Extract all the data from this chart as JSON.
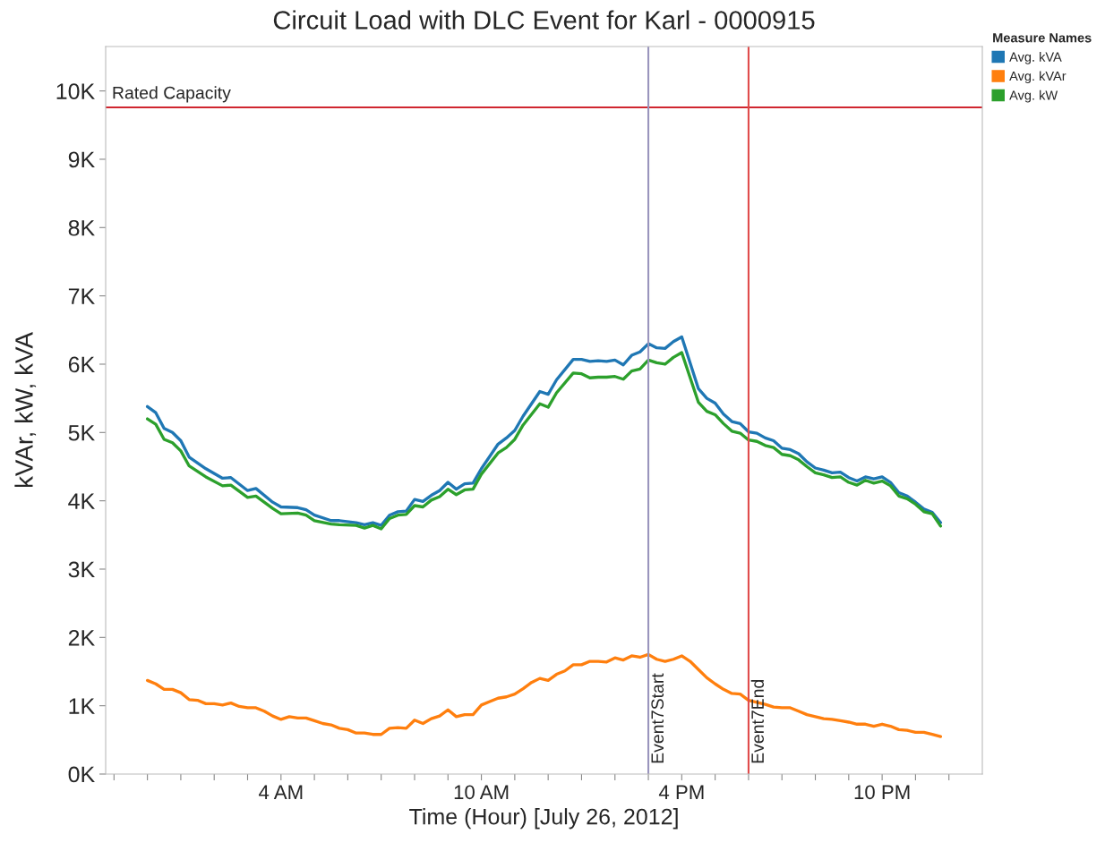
{
  "chart_data": {
    "type": "line",
    "title": "Circuit Load with DLC Event for Karl - 0000915",
    "xlabel": "Time (Hour) [July 26, 2012]",
    "ylabel": "kVAr, kW, kVA",
    "legend_title": "Measure Names",
    "legend": "top right",
    "grid": false,
    "xlim": [
      "2012-07-25T22:45",
      "2012-07-27T01:00"
    ],
    "xticks": [
      {
        "value": "2012-07-25T23:00",
        "label": null
      },
      {
        "value": "2012-07-26T00:00",
        "label": null
      },
      {
        "value": "2012-07-26T01:00",
        "label": null
      },
      {
        "value": "2012-07-26T02:00",
        "label": null
      },
      {
        "value": "2012-07-26T03:00",
        "label": null
      },
      {
        "value": "2012-07-26T04:00",
        "label": "4 AM"
      },
      {
        "value": "2012-07-26T05:00",
        "label": null
      },
      {
        "value": "2012-07-26T06:00",
        "label": null
      },
      {
        "value": "2012-07-26T07:00",
        "label": null
      },
      {
        "value": "2012-07-26T08:00",
        "label": null
      },
      {
        "value": "2012-07-26T09:00",
        "label": null
      },
      {
        "value": "2012-07-26T10:00",
        "label": "10 AM"
      },
      {
        "value": "2012-07-26T11:00",
        "label": null
      },
      {
        "value": "2012-07-26T12:00",
        "label": null
      },
      {
        "value": "2012-07-26T13:00",
        "label": null
      },
      {
        "value": "2012-07-26T14:00",
        "label": null
      },
      {
        "value": "2012-07-26T15:00",
        "label": null
      },
      {
        "value": "2012-07-26T16:00",
        "label": "4 PM"
      },
      {
        "value": "2012-07-26T17:00",
        "label": null
      },
      {
        "value": "2012-07-26T18:00",
        "label": null
      },
      {
        "value": "2012-07-26T19:00",
        "label": null
      },
      {
        "value": "2012-07-26T20:00",
        "label": null
      },
      {
        "value": "2012-07-26T21:00",
        "label": null
      },
      {
        "value": "2012-07-26T22:00",
        "label": "10 PM"
      },
      {
        "value": "2012-07-26T23:00",
        "label": null
      },
      {
        "value": "2012-07-27T00:00",
        "label": null
      }
    ],
    "ylim": [
      0,
      10650
    ],
    "yticks": [
      {
        "value": 0,
        "label": "0K"
      },
      {
        "value": 1000,
        "label": "1K"
      },
      {
        "value": 2000,
        "label": "2K"
      },
      {
        "value": 3000,
        "label": "3K"
      },
      {
        "value": 4000,
        "label": "4K"
      },
      {
        "value": 5000,
        "label": "5K"
      },
      {
        "value": 6000,
        "label": "6K"
      },
      {
        "value": 7000,
        "label": "7K"
      },
      {
        "value": 8000,
        "label": "8K"
      },
      {
        "value": 9000,
        "label": "9K"
      },
      {
        "value": 10000,
        "label": "10K"
      }
    ],
    "ref_lines": [
      {
        "axis": "y",
        "value": 9760,
        "label": "Rated Capacity",
        "color": "#d0262f"
      },
      {
        "axis": "x",
        "value": "2012-07-26T15:00",
        "label": "Event7Start",
        "color": "#9a95bd"
      },
      {
        "axis": "x",
        "value": "2012-07-26T18:00",
        "label": "Event7End",
        "color": "#e04a4a"
      }
    ],
    "series": [
      {
        "name": "Avg. kVA",
        "color": "#1f77b4",
        "x": [
          "2012-07-26T00:00",
          "2012-07-26T00:15",
          "2012-07-26T00:30",
          "2012-07-26T00:45",
          "2012-07-26T01:00",
          "2012-07-26T01:15",
          "2012-07-26T01:45",
          "2012-07-26T02:15",
          "2012-07-26T02:30",
          "2012-07-26T03:00",
          "2012-07-26T03:15",
          "2012-07-26T03:45",
          "2012-07-26T04:00",
          "2012-07-26T04:30",
          "2012-07-26T04:45",
          "2012-07-26T05:00",
          "2012-07-26T05:30",
          "2012-07-26T05:45",
          "2012-07-26T06:15",
          "2012-07-26T06:30",
          "2012-07-26T06:45",
          "2012-07-26T07:00",
          "2012-07-26T07:15",
          "2012-07-26T07:30",
          "2012-07-26T07:45",
          "2012-07-26T08:00",
          "2012-07-26T08:15",
          "2012-07-26T08:30",
          "2012-07-26T08:45",
          "2012-07-26T09:00",
          "2012-07-26T09:15",
          "2012-07-26T09:30",
          "2012-07-26T09:45",
          "2012-07-26T10:00",
          "2012-07-26T10:30",
          "2012-07-26T10:45",
          "2012-07-26T11:00",
          "2012-07-26T11:15",
          "2012-07-26T11:45",
          "2012-07-26T12:00",
          "2012-07-26T12:15",
          "2012-07-26T12:45",
          "2012-07-26T13:00",
          "2012-07-26T13:15",
          "2012-07-26T13:30",
          "2012-07-26T13:45",
          "2012-07-26T14:00",
          "2012-07-26T14:15",
          "2012-07-26T14:30",
          "2012-07-26T14:45",
          "2012-07-26T15:00",
          "2012-07-26T15:15",
          "2012-07-26T15:30",
          "2012-07-26T15:45",
          "2012-07-26T16:00",
          "2012-07-26T16:30",
          "2012-07-26T16:45",
          "2012-07-26T17:00",
          "2012-07-26T17:15",
          "2012-07-26T17:30",
          "2012-07-26T17:45",
          "2012-07-26T18:00",
          "2012-07-26T18:15",
          "2012-07-26T18:30",
          "2012-07-26T18:45",
          "2012-07-26T19:00",
          "2012-07-26T19:15",
          "2012-07-26T19:30",
          "2012-07-26T19:45",
          "2012-07-26T20:00",
          "2012-07-26T20:15",
          "2012-07-26T20:30",
          "2012-07-26T20:45",
          "2012-07-26T21:00",
          "2012-07-26T21:15",
          "2012-07-26T21:30",
          "2012-07-26T21:45",
          "2012-07-26T22:00",
          "2012-07-26T22:15",
          "2012-07-26T22:30",
          "2012-07-26T22:45",
          "2012-07-26T23:00",
          "2012-07-26T23:15",
          "2012-07-26T23:30",
          "2012-07-26T23:45"
        ],
        "values": [
          5380,
          5290,
          5060,
          5000,
          4880,
          4640,
          4470,
          4330,
          4340,
          4150,
          4180,
          3980,
          3910,
          3900,
          3870,
          3790,
          3710,
          3710,
          3680,
          3650,
          3680,
          3640,
          3790,
          3840,
          3850,
          4020,
          3990,
          4080,
          4150,
          4270,
          4170,
          4250,
          4260,
          4470,
          4830,
          4920,
          5030,
          5240,
          5600,
          5560,
          5770,
          6070,
          6070,
          6040,
          6050,
          6040,
          6060,
          5990,
          6130,
          6180,
          6300,
          6240,
          6230,
          6330,
          6400,
          5640,
          5500,
          5430,
          5270,
          5160,
          5130,
          5010,
          4990,
          4920,
          4880,
          4770,
          4750,
          4690,
          4570,
          4480,
          4450,
          4410,
          4420,
          4340,
          4290,
          4350,
          4320,
          4350,
          4270,
          4120,
          4070,
          3980,
          3880,
          3830,
          3680
        ]
      },
      {
        "name": "Avg. kVAr",
        "color": "#ff7f0e",
        "x": [
          "2012-07-26T00:00",
          "2012-07-26T00:15",
          "2012-07-26T00:30",
          "2012-07-26T00:45",
          "2012-07-26T01:00",
          "2012-07-26T01:15",
          "2012-07-26T01:30",
          "2012-07-26T01:45",
          "2012-07-26T02:00",
          "2012-07-26T02:15",
          "2012-07-26T02:30",
          "2012-07-26T02:45",
          "2012-07-26T03:00",
          "2012-07-26T03:15",
          "2012-07-26T03:30",
          "2012-07-26T03:45",
          "2012-07-26T04:00",
          "2012-07-26T04:15",
          "2012-07-26T04:30",
          "2012-07-26T04:45",
          "2012-07-26T05:00",
          "2012-07-26T05:15",
          "2012-07-26T05:30",
          "2012-07-26T05:45",
          "2012-07-26T06:00",
          "2012-07-26T06:15",
          "2012-07-26T06:30",
          "2012-07-26T06:45",
          "2012-07-26T07:00",
          "2012-07-26T07:15",
          "2012-07-26T07:30",
          "2012-07-26T07:45",
          "2012-07-26T08:00",
          "2012-07-26T08:15",
          "2012-07-26T08:30",
          "2012-07-26T08:45",
          "2012-07-26T09:00",
          "2012-07-26T09:15",
          "2012-07-26T09:30",
          "2012-07-26T09:45",
          "2012-07-26T10:00",
          "2012-07-26T10:15",
          "2012-07-26T10:30",
          "2012-07-26T10:45",
          "2012-07-26T11:00",
          "2012-07-26T11:15",
          "2012-07-26T11:30",
          "2012-07-26T11:45",
          "2012-07-26T12:00",
          "2012-07-26T12:15",
          "2012-07-26T12:30",
          "2012-07-26T12:45",
          "2012-07-26T13:00",
          "2012-07-26T13:15",
          "2012-07-26T13:30",
          "2012-07-26T13:45",
          "2012-07-26T14:00",
          "2012-07-26T14:15",
          "2012-07-26T14:30",
          "2012-07-26T14:45",
          "2012-07-26T15:00",
          "2012-07-26T15:15",
          "2012-07-26T15:30",
          "2012-07-26T15:45",
          "2012-07-26T16:00",
          "2012-07-26T16:15",
          "2012-07-26T16:30",
          "2012-07-26T16:45",
          "2012-07-26T17:00",
          "2012-07-26T17:15",
          "2012-07-26T17:30",
          "2012-07-26T17:45",
          "2012-07-26T18:00",
          "2012-07-26T18:15",
          "2012-07-26T18:30",
          "2012-07-26T18:45",
          "2012-07-26T19:00",
          "2012-07-26T19:15",
          "2012-07-26T19:30",
          "2012-07-26T19:45",
          "2012-07-26T20:00",
          "2012-07-26T20:15",
          "2012-07-26T20:30",
          "2012-07-26T20:45",
          "2012-07-26T21:00",
          "2012-07-26T21:15",
          "2012-07-26T21:30",
          "2012-07-26T21:45",
          "2012-07-26T22:00",
          "2012-07-26T22:15",
          "2012-07-26T22:30",
          "2012-07-26T22:45",
          "2012-07-26T23:00",
          "2012-07-26T23:15",
          "2012-07-26T23:30",
          "2012-07-26T23:45"
        ],
        "values": [
          1370,
          1320,
          1240,
          1240,
          1190,
          1090,
          1080,
          1030,
          1030,
          1010,
          1040,
          990,
          970,
          970,
          920,
          850,
          800,
          840,
          820,
          820,
          780,
          740,
          720,
          670,
          650,
          600,
          600,
          580,
          580,
          670,
          680,
          670,
          790,
          740,
          810,
          850,
          940,
          840,
          870,
          870,
          1010,
          1060,
          1110,
          1130,
          1170,
          1250,
          1340,
          1400,
          1370,
          1460,
          1510,
          1600,
          1600,
          1650,
          1650,
          1640,
          1700,
          1670,
          1730,
          1710,
          1750,
          1680,
          1650,
          1680,
          1730,
          1650,
          1530,
          1410,
          1320,
          1240,
          1180,
          1170,
          1080,
          1050,
          1020,
          980,
          970,
          970,
          920,
          870,
          840,
          810,
          800,
          780,
          760,
          730,
          730,
          700,
          730,
          700,
          650,
          640,
          610,
          610,
          580,
          550
        ]
      },
      {
        "name": "Avg. kW",
        "color": "#2ca02c",
        "x": [
          "2012-07-26T00:00",
          "2012-07-26T00:15",
          "2012-07-26T00:30",
          "2012-07-26T00:45",
          "2012-07-26T01:00",
          "2012-07-26T01:15",
          "2012-07-26T01:45",
          "2012-07-26T02:15",
          "2012-07-26T02:30",
          "2012-07-26T03:00",
          "2012-07-26T03:15",
          "2012-07-26T03:45",
          "2012-07-26T04:00",
          "2012-07-26T04:30",
          "2012-07-26T04:45",
          "2012-07-26T05:00",
          "2012-07-26T05:30",
          "2012-07-26T05:45",
          "2012-07-26T06:15",
          "2012-07-26T06:30",
          "2012-07-26T06:45",
          "2012-07-26T07:00",
          "2012-07-26T07:15",
          "2012-07-26T07:30",
          "2012-07-26T07:45",
          "2012-07-26T08:00",
          "2012-07-26T08:15",
          "2012-07-26T08:30",
          "2012-07-26T08:45",
          "2012-07-26T09:00",
          "2012-07-26T09:15",
          "2012-07-26T09:30",
          "2012-07-26T09:45",
          "2012-07-26T10:00",
          "2012-07-26T10:30",
          "2012-07-26T10:45",
          "2012-07-26T11:00",
          "2012-07-26T11:15",
          "2012-07-26T11:45",
          "2012-07-26T12:00",
          "2012-07-26T12:15",
          "2012-07-26T12:45",
          "2012-07-26T13:00",
          "2012-07-26T13:15",
          "2012-07-26T13:30",
          "2012-07-26T13:45",
          "2012-07-26T14:00",
          "2012-07-26T14:15",
          "2012-07-26T14:30",
          "2012-07-26T14:45",
          "2012-07-26T15:00",
          "2012-07-26T15:15",
          "2012-07-26T15:30",
          "2012-07-26T15:45",
          "2012-07-26T16:00",
          "2012-07-26T16:30",
          "2012-07-26T16:45",
          "2012-07-26T17:00",
          "2012-07-26T17:15",
          "2012-07-26T17:30",
          "2012-07-26T17:45",
          "2012-07-26T18:00",
          "2012-07-26T18:15",
          "2012-07-26T18:30",
          "2012-07-26T18:45",
          "2012-07-26T19:00",
          "2012-07-26T19:15",
          "2012-07-26T19:30",
          "2012-07-26T19:45",
          "2012-07-26T20:00",
          "2012-07-26T20:15",
          "2012-07-26T20:30",
          "2012-07-26T20:45",
          "2012-07-26T21:00",
          "2012-07-26T21:15",
          "2012-07-26T21:30",
          "2012-07-26T21:45",
          "2012-07-26T22:00",
          "2012-07-26T22:15",
          "2012-07-26T22:30",
          "2012-07-26T22:45",
          "2012-07-26T23:00",
          "2012-07-26T23:15",
          "2012-07-26T23:30",
          "2012-07-26T23:45"
        ],
        "values": [
          5200,
          5120,
          4900,
          4850,
          4730,
          4510,
          4350,
          4220,
          4230,
          4050,
          4070,
          3890,
          3810,
          3820,
          3790,
          3710,
          3660,
          3650,
          3640,
          3600,
          3640,
          3590,
          3740,
          3790,
          3800,
          3930,
          3910,
          4010,
          4060,
          4170,
          4090,
          4160,
          4170,
          4390,
          4700,
          4780,
          4900,
          5110,
          5420,
          5370,
          5580,
          5870,
          5860,
          5800,
          5810,
          5810,
          5820,
          5780,
          5900,
          5930,
          6060,
          6020,
          6000,
          6100,
          6170,
          5440,
          5310,
          5260,
          5130,
          5020,
          4990,
          4890,
          4870,
          4810,
          4780,
          4680,
          4660,
          4600,
          4500,
          4410,
          4380,
          4340,
          4350,
          4270,
          4230,
          4300,
          4260,
          4290,
          4220,
          4070,
          4030,
          3950,
          3840,
          3810,
          3630
        ]
      }
    ]
  }
}
